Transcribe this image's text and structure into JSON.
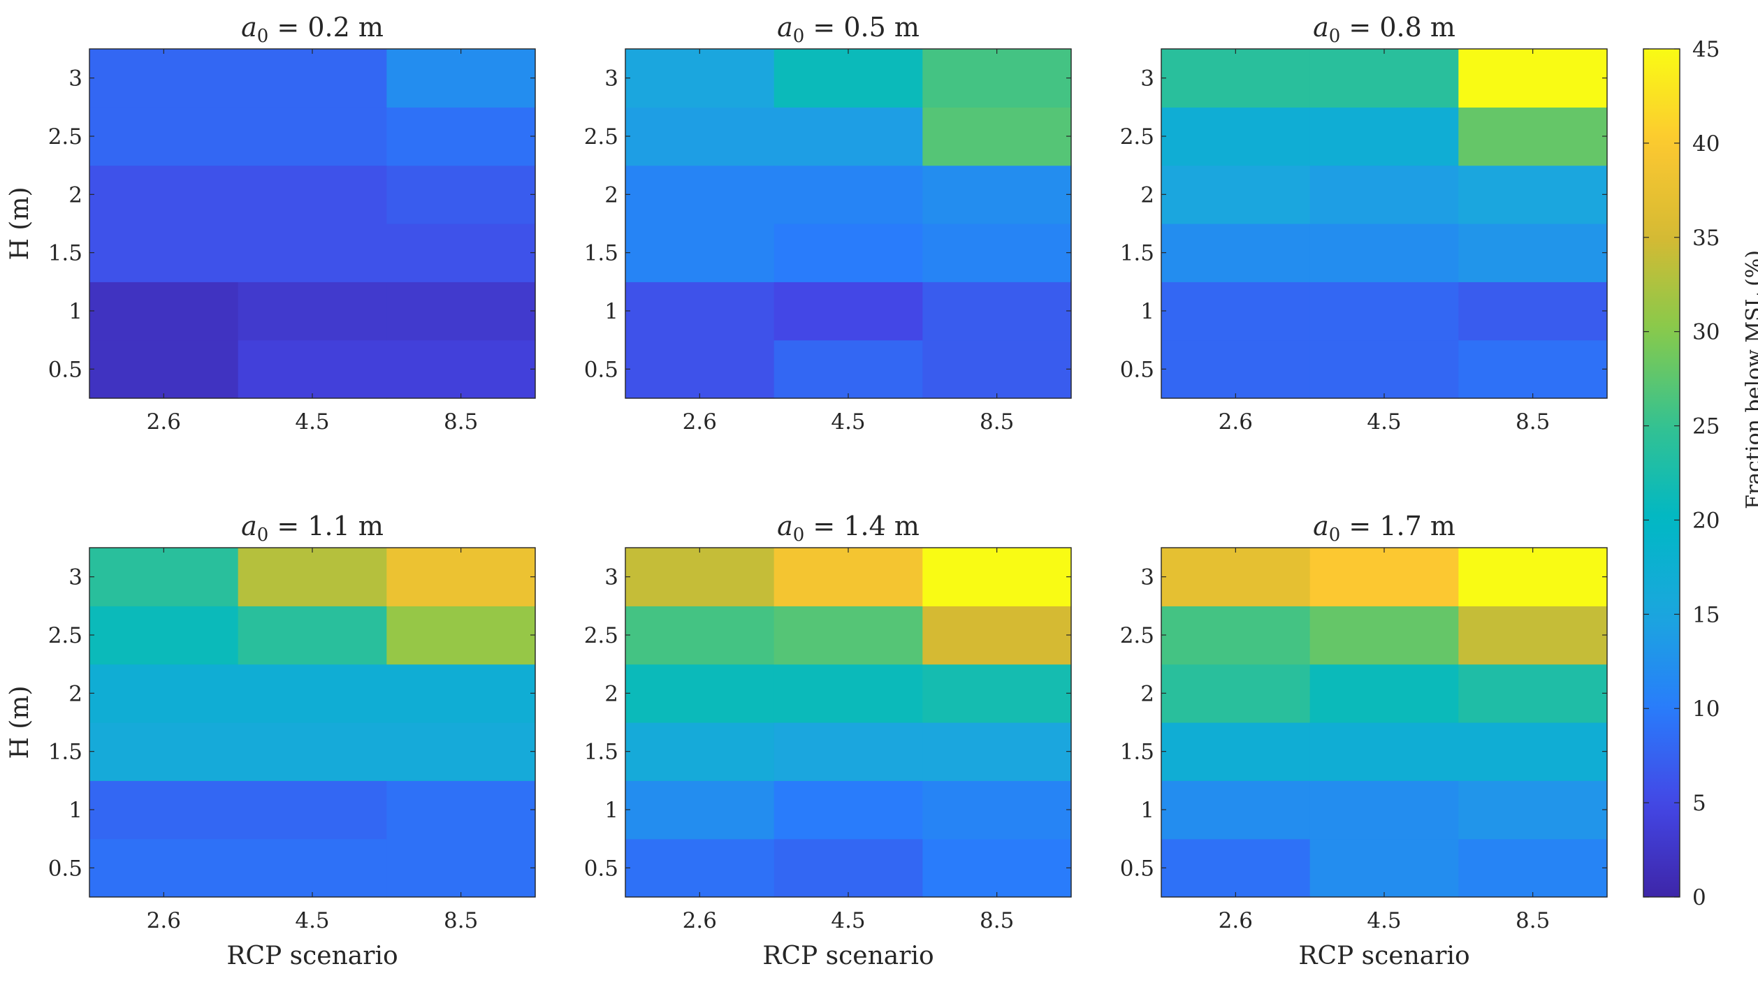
{
  "chart_data": {
    "type": "heatmap",
    "x_title": "RCP scenario",
    "y_title": "H (m)",
    "x_categories": [
      "2.6",
      "4.5",
      "8.5"
    ],
    "y_categories": [
      "0.5",
      "1",
      "1.5",
      "2",
      "2.5",
      "3"
    ],
    "colorbar": {
      "label": "Fraction below MSL (%)",
      "min": 0,
      "max": 45,
      "ticks": [
        "0",
        "5",
        "10",
        "15",
        "20",
        "25",
        "30",
        "35",
        "40",
        "45"
      ],
      "colormap": "parula"
    },
    "panels": [
      {
        "title_symbol": "a",
        "title_subscript": "0",
        "title_value": " = 0.2 m",
        "values": [
          [
            2,
            4,
            4
          ],
          [
            2,
            3,
            3
          ],
          [
            6,
            6,
            6
          ],
          [
            6,
            6,
            7
          ],
          [
            8,
            8,
            9
          ],
          [
            8,
            8,
            12
          ]
        ]
      },
      {
        "title_symbol": "a",
        "title_subscript": "0",
        "title_value": " = 0.5 m",
        "values": [
          [
            6,
            8,
            7
          ],
          [
            6,
            5,
            7
          ],
          [
            11,
            10,
            11
          ],
          [
            11,
            11,
            12
          ],
          [
            14,
            14,
            27
          ],
          [
            15,
            21,
            26
          ]
        ]
      },
      {
        "title_symbol": "a",
        "title_subscript": "0",
        "title_value": " = 0.8 m",
        "values": [
          [
            8,
            8,
            9
          ],
          [
            8,
            8,
            7
          ],
          [
            12,
            12,
            13
          ],
          [
            15,
            14,
            15
          ],
          [
            17,
            17,
            28
          ],
          [
            24,
            24,
            45
          ]
        ]
      },
      {
        "title_symbol": "a",
        "title_subscript": "0",
        "title_value": " = 1.1 m",
        "values": [
          [
            9,
            9,
            9
          ],
          [
            8,
            8,
            9
          ],
          [
            16,
            16,
            16
          ],
          [
            17,
            17,
            17
          ],
          [
            21,
            24,
            31
          ],
          [
            24,
            33,
            38
          ]
        ]
      },
      {
        "title_symbol": "a",
        "title_subscript": "0",
        "title_value": " = 1.4 m",
        "values": [
          [
            9,
            8,
            10
          ],
          [
            12,
            10,
            11
          ],
          [
            16,
            15,
            15
          ],
          [
            21,
            21,
            22
          ],
          [
            26,
            27,
            35
          ],
          [
            34,
            39,
            45
          ]
        ]
      },
      {
        "title_symbol": "a",
        "title_subscript": "0",
        "title_value": " = 1.7 m",
        "values": [
          [
            9,
            12,
            11
          ],
          [
            12,
            12,
            13
          ],
          [
            17,
            17,
            17
          ],
          [
            24,
            21,
            23
          ],
          [
            26,
            28,
            34
          ],
          [
            37,
            40,
            45
          ]
        ]
      }
    ]
  }
}
